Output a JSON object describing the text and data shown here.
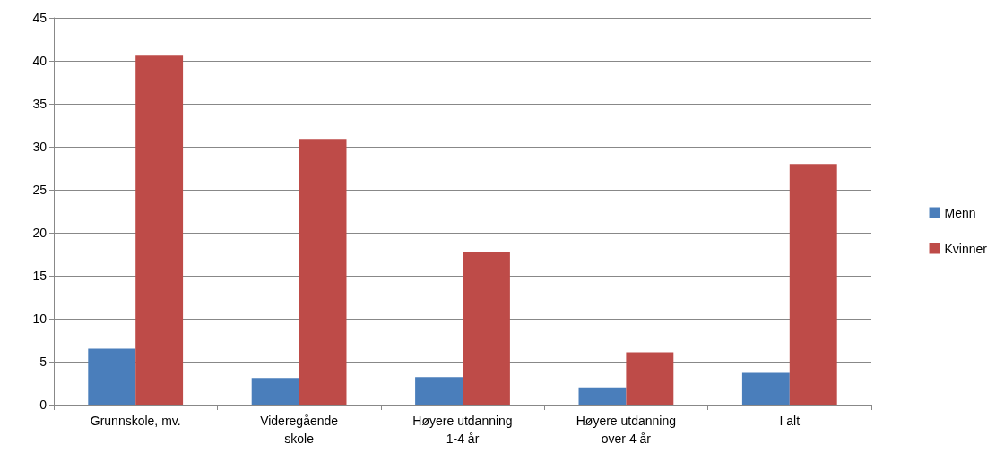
{
  "chart_data": {
    "type": "bar",
    "categories": [
      "Grunnskole, mv.",
      "Videregående\nskole",
      "Høyere utdanning\n1-4 år",
      "Høyere utdanning\nover 4 år",
      "I alt"
    ],
    "series": [
      {
        "name": "Menn",
        "color": "#4a7ebb",
        "values": [
          6.5,
          3.1,
          3.2,
          2.0,
          3.7
        ]
      },
      {
        "name": "Kvinner",
        "color": "#be4b48",
        "values": [
          40.6,
          30.9,
          17.8,
          6.1,
          28.0
        ]
      }
    ],
    "ylim": [
      0,
      45
    ],
    "yticks": [
      0,
      5,
      10,
      15,
      20,
      25,
      30,
      35,
      40,
      45
    ],
    "grid": "y",
    "legend": "right"
  }
}
